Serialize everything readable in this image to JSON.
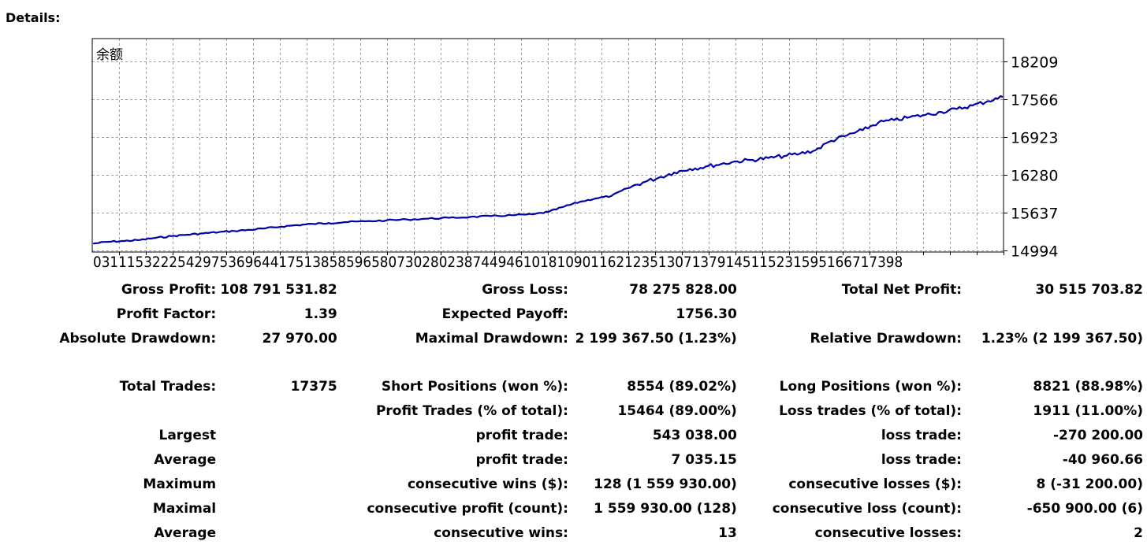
{
  "heading": "Details:",
  "chart_data": {
    "type": "line",
    "title": "余额",
    "xlabel": "",
    "ylabel": "",
    "x_tick_labels": [
      "0",
      "3",
      "11",
      "153",
      "222",
      "542",
      "975",
      "369",
      "644",
      "175",
      "138",
      "585",
      "965",
      "807",
      "302",
      "802",
      "387",
      "449",
      "461",
      "018",
      "109",
      "011",
      "621",
      "235",
      "130",
      "713",
      "791",
      "451",
      "152",
      "315",
      "951",
      "667",
      "173",
      "98"
    ],
    "y_ticks": [
      14994,
      15637,
      16280,
      16923,
      17566,
      18209
    ],
    "ylim": [
      14994,
      18209
    ],
    "xlim": [
      0,
      17375
    ],
    "grid": true,
    "colors": {
      "line": "#0000a8",
      "grid": "#a0a0a0",
      "frame": "#000000"
    },
    "series": [
      {
        "x": [
          0,
          300,
          600,
          900,
          1200,
          1500,
          1800,
          2100,
          2400,
          2700,
          3000,
          3300,
          3600,
          3900,
          4200,
          4500,
          4800,
          5200,
          5600,
          6000,
          6400,
          6800,
          7200,
          7600,
          8000,
          8400,
          8700,
          9000,
          9300,
          9600,
          9900,
          10200,
          10500,
          10800,
          11100,
          11400,
          11700,
          12000,
          12300,
          12600,
          12900,
          13200,
          13500,
          13800,
          14100,
          14400,
          14700,
          15000,
          15300,
          15600,
          15900,
          16200,
          16500,
          16800,
          17100,
          17375
        ],
        "y": [
          15110,
          15142,
          15155,
          15172,
          15208,
          15238,
          15262,
          15284,
          15305,
          15325,
          15345,
          15370,
          15400,
          15425,
          15445,
          15460,
          15475,
          15490,
          15505,
          15520,
          15535,
          15548,
          15563,
          15578,
          15593,
          15608,
          15650,
          15740,
          15820,
          15880,
          15920,
          16050,
          16150,
          16230,
          16320,
          16380,
          16420,
          16465,
          16510,
          16535,
          16565,
          16600,
          16640,
          16700,
          16860,
          16950,
          17040,
          17170,
          17210,
          17260,
          17300,
          17350,
          17400,
          17460,
          17535,
          17605
        ]
      }
    ]
  },
  "stats": {
    "gross_profit_label": "Gross Profit:",
    "gross_profit": "108 791 531.82",
    "gross_loss_label": "Gross Loss:",
    "gross_loss": "78 275 828.00",
    "total_net_profit_label": "Total Net Profit:",
    "total_net_profit": "30 515 703.82",
    "profit_factor_label": "Profit Factor:",
    "profit_factor": "1.39",
    "expected_payoff_label": "Expected Payoff:",
    "expected_payoff": "1756.30",
    "absolute_drawdown_label": "Absolute Drawdown:",
    "absolute_drawdown": "27 970.00",
    "maximal_drawdown_label": "Maximal Drawdown:",
    "maximal_drawdown": "2 199 367.50 (1.23%)",
    "relative_drawdown_label": "Relative Drawdown:",
    "relative_drawdown": "1.23% (2 199 367.50)",
    "total_trades_label": "Total Trades:",
    "total_trades": "17375",
    "short_positions_label": "Short Positions (won %):",
    "short_positions": "8554 (89.02%)",
    "long_positions_label": "Long Positions (won %):",
    "long_positions": "8821 (88.98%)",
    "profit_trades_label": "Profit Trades (% of total):",
    "profit_trades": "15464 (89.00%)",
    "loss_trades_label": "Loss trades (% of total):",
    "loss_trades": "1911 (11.00%)",
    "largest_label": "Largest",
    "largest_profit_label": "profit trade:",
    "largest_profit": "543 038.00",
    "largest_loss_label": "loss trade:",
    "largest_loss": "-270 200.00",
    "average_label": "Average",
    "average_profit_label": "profit trade:",
    "average_profit": "7 035.15",
    "average_loss_label": "loss trade:",
    "average_loss": "-40 960.66",
    "maximum_label": "Maximum",
    "max_consec_wins_label": "consecutive wins ($):",
    "max_consec_wins": "128 (1 559 930.00)",
    "max_consec_losses_label": "consecutive losses ($):",
    "max_consec_losses": "8 (-31 200.00)",
    "maximal_label": "Maximal",
    "maximal_consec_profit_label": "consecutive profit (count):",
    "maximal_consec_profit": "1 559 930.00 (128)",
    "maximal_consec_loss_label": "consecutive loss (count):",
    "maximal_consec_loss": "-650 900.00 (6)",
    "average2_label": "Average",
    "avg_consec_wins_label": "consecutive wins:",
    "avg_consec_wins": "13",
    "avg_consec_losses_label": "consecutive losses:",
    "avg_consec_losses": "2"
  }
}
